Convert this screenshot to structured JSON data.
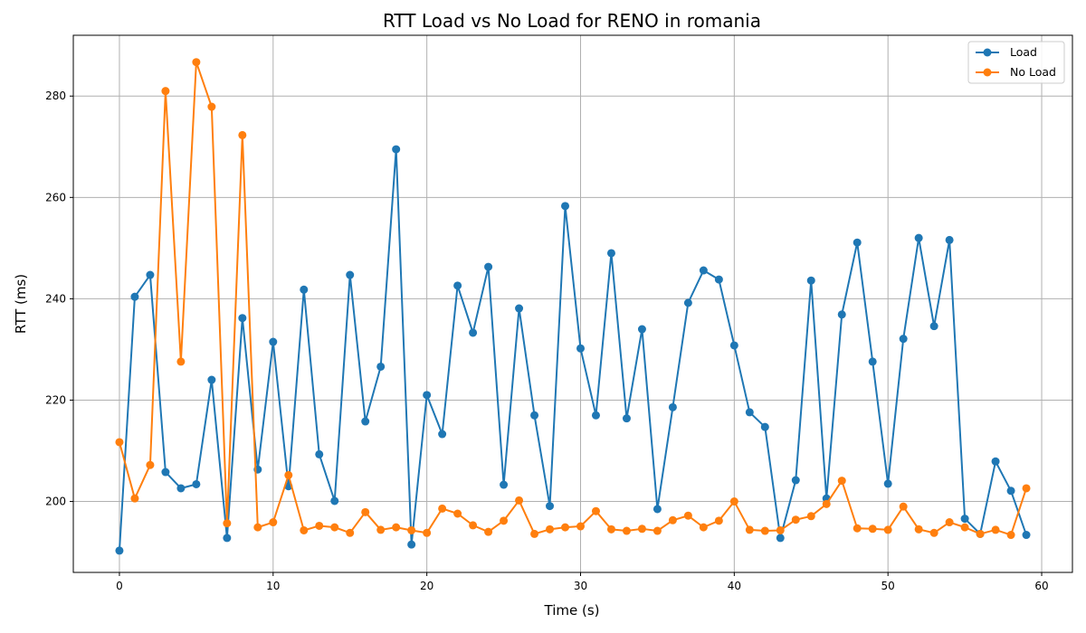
{
  "chart_data": {
    "type": "line",
    "title": "RTT Load vs No Load for RENO in romania",
    "xlabel": "Time (s)",
    "ylabel": "RTT (ms)",
    "xlim": [
      -3,
      62
    ],
    "ylim": [
      186,
      292
    ],
    "xticks": [
      0,
      10,
      20,
      30,
      40,
      50,
      60
    ],
    "yticks": [
      200,
      220,
      240,
      260,
      280
    ],
    "grid": true,
    "legend_position": "top-right",
    "x": [
      0,
      1,
      2,
      3,
      4,
      5,
      6,
      7,
      8,
      9,
      10,
      11,
      12,
      13,
      14,
      15,
      16,
      17,
      18,
      19,
      20,
      21,
      22,
      23,
      24,
      25,
      26,
      27,
      28,
      29,
      30,
      31,
      32,
      33,
      34,
      35,
      36,
      37,
      38,
      39,
      40,
      41,
      42,
      43,
      44,
      45,
      46,
      47,
      48,
      49,
      50,
      51,
      52,
      53,
      54,
      55,
      56,
      57,
      58,
      59
    ],
    "series": [
      {
        "name": "Load",
        "color": "#1f77b4",
        "values": [
          190.3,
          240.4,
          244.7,
          205.8,
          202.6,
          203.4,
          224.0,
          192.8,
          236.2,
          206.3,
          231.5,
          203.0,
          241.8,
          209.3,
          200.1,
          244.7,
          215.8,
          226.6,
          269.5,
          191.5,
          221.0,
          213.3,
          242.6,
          233.3,
          246.3,
          203.3,
          238.1,
          217.0,
          199.1,
          258.3,
          230.2,
          217.0,
          249.0,
          216.4,
          234.0,
          198.5,
          218.6,
          239.2,
          245.6,
          243.8,
          230.8,
          217.6,
          214.7,
          192.8,
          204.2,
          243.6,
          200.6,
          236.9,
          251.1,
          227.6,
          203.5,
          232.1,
          252.0,
          234.6,
          251.6,
          196.6,
          193.6,
          207.9,
          202.1,
          193.4
        ]
      },
      {
        "name": "No Load",
        "color": "#ff7f0e",
        "values": [
          211.7,
          200.6,
          207.2,
          281.0,
          227.6,
          286.7,
          277.9,
          195.7,
          272.3,
          194.9,
          195.9,
          205.2,
          194.3,
          195.2,
          194.9,
          193.8,
          197.9,
          194.4,
          194.9,
          194.3,
          193.8,
          198.6,
          197.6,
          195.3,
          194.0,
          196.2,
          200.2,
          193.6,
          194.5,
          194.9,
          195.1,
          198.1,
          194.5,
          194.2,
          194.6,
          194.2,
          196.3,
          197.2,
          194.9,
          196.2,
          200.0,
          194.4,
          194.2,
          194.3,
          196.4,
          197.1,
          199.5,
          204.1,
          194.7,
          194.6,
          194.4,
          199.0,
          194.5,
          193.8,
          195.9,
          194.9,
          193.6,
          194.4,
          193.4,
          202.6
        ]
      }
    ]
  }
}
